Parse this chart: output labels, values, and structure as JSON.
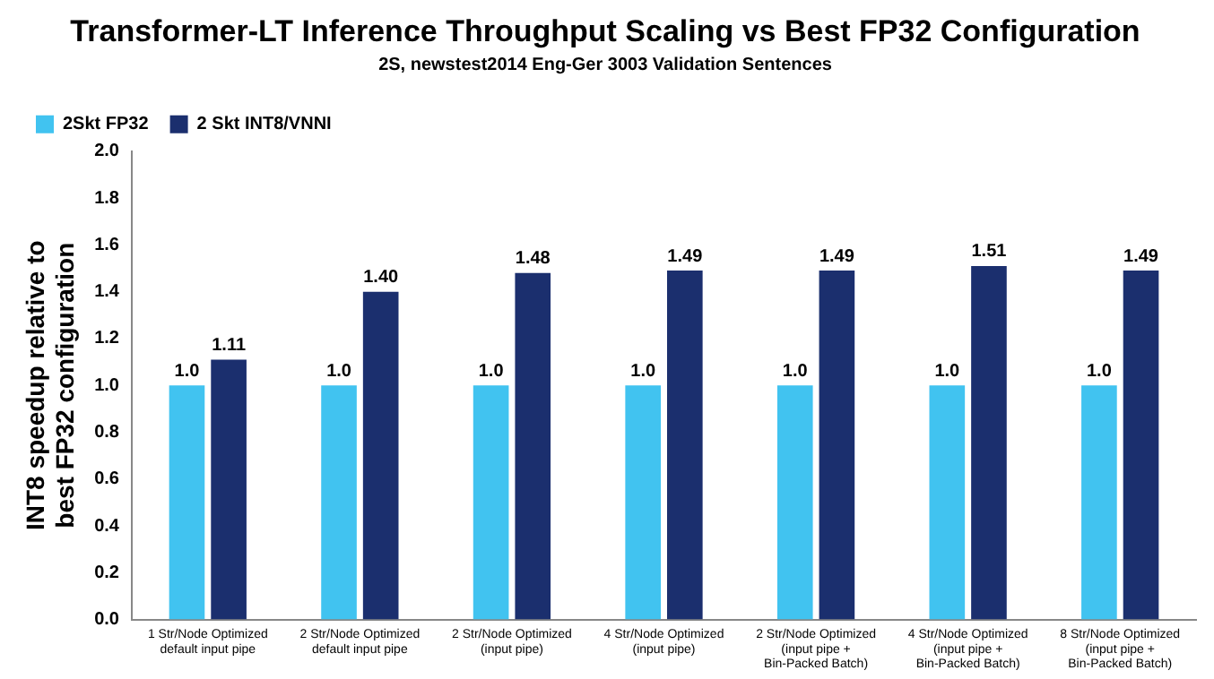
{
  "chart_data": {
    "type": "bar",
    "title": "Transformer-LT Inference Throughput Scaling vs Best FP32 Configuration",
    "subtitle": "2S, newstest2014 Eng-Ger 3003 Validation Sentences",
    "ylabel": "INT8 speedup relative to best FP32 configuration",
    "categories": [
      "1 Str/Node Optimized default input pipe",
      "2 Str/Node Optimized default input pipe",
      "2 Str/Node Optimized (input pipe)",
      "4 Str/Node Optimized (input pipe)",
      "2 Str/Node Optimized (input pipe + Bin-Packed Batch)",
      "4 Str/Node Optimized (input pipe + Bin-Packed Batch)",
      "8 Str/Node Optimized (input pipe + Bin-Packed Batch)"
    ],
    "series": [
      {
        "name": "2Skt FP32",
        "color": "#41c3f0",
        "values": [
          1,
          1,
          1,
          1,
          1,
          1,
          1
        ],
        "value_labels": [
          "1.0",
          "1.0",
          "1.0",
          "1.0",
          "1.0",
          "1.0",
          "1.0"
        ]
      },
      {
        "name": "2 Skt INT8/VNNI",
        "color": "#1b2f6e",
        "values": [
          1.11,
          1.4,
          1.48,
          1.49,
          1.49,
          1.51,
          1.49
        ],
        "value_labels": [
          "1.11",
          "1.40",
          "1.48",
          "1.49",
          "1.49",
          "1.51",
          "1.49"
        ]
      }
    ],
    "ylim": [
      0,
      2
    ],
    "yticks": [
      {
        "value": 0,
        "label": "0.0"
      },
      {
        "value": 0.2,
        "label": "0.2"
      },
      {
        "value": 0.4,
        "label": "0.4"
      },
      {
        "value": 0.6,
        "label": "0.6"
      },
      {
        "value": 0.8,
        "label": "0.8"
      },
      {
        "value": 1,
        "label": "1.0"
      },
      {
        "value": 1.2,
        "label": "1.2"
      },
      {
        "value": 1.4,
        "label": "1.4"
      },
      {
        "value": 1.6,
        "label": "1.6"
      },
      {
        "value": 1.8,
        "label": "1.8"
      },
      {
        "value": 2,
        "label": "2.0"
      }
    ],
    "grid": false,
    "legend": "top left"
  }
}
